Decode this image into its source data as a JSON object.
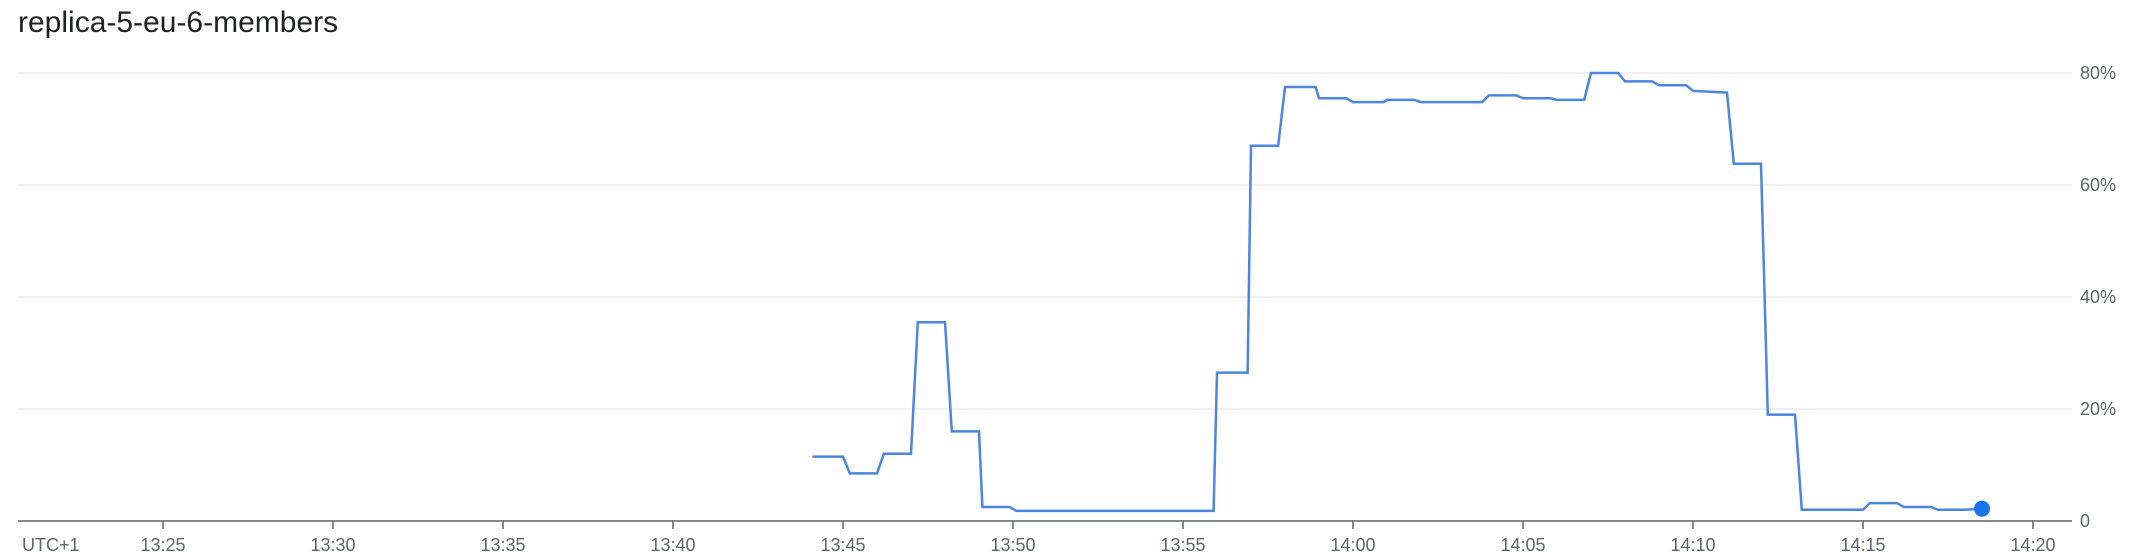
{
  "chart_data": {
    "type": "line",
    "title": "replica-5-eu-6-members",
    "timezone_label": "UTC+1",
    "x_tick_labels": [
      "13:25",
      "13:30",
      "13:35",
      "13:40",
      "13:45",
      "13:50",
      "13:55",
      "14:00",
      "14:05",
      "14:10",
      "14:15",
      "14:20"
    ],
    "y_tick_labels": [
      "0",
      "20%",
      "40%",
      "60%",
      "80%"
    ],
    "y_ticks": [
      0,
      20,
      40,
      60,
      80
    ],
    "ylim": [
      0,
      80
    ],
    "xlim_minutes": [
      20,
      81
    ],
    "grid": true,
    "line_color": "#4a86e0",
    "marker_color": "#1a73e8",
    "gridline_color": "#e8eaed",
    "axis_color": "#5f6368",
    "series": [
      {
        "x_minutes": [
          44.1,
          45.0,
          45.2,
          46.0,
          46.2,
          47.0,
          47.2,
          48.0,
          48.2,
          49.0,
          49.1,
          49.9,
          50.1,
          55.9,
          56.0,
          56.9,
          57.0,
          57.8,
          58.0,
          58.9,
          59.0,
          59.8,
          60.0,
          60.9,
          61.0,
          61.8,
          62.0,
          62.9,
          63.0,
          63.8,
          64.0,
          64.8,
          65.0,
          65.8,
          66.0,
          66.8,
          67.0,
          67.8,
          68.0,
          68.8,
          69.0,
          69.8,
          70.0,
          71.0,
          71.2,
          72.0,
          72.2,
          73.0,
          73.2,
          74.0,
          74.2,
          75.0,
          75.2,
          76.0,
          76.2,
          77.0,
          77.2,
          78.0,
          78.5
        ],
        "y_percent": [
          11.5,
          11.5,
          8.5,
          8.5,
          12,
          12,
          35.5,
          35.5,
          16,
          16,
          2.5,
          2.5,
          1.8,
          1.8,
          26.5,
          26.5,
          67,
          67,
          77.5,
          77.5,
          75.5,
          75.5,
          74.8,
          74.8,
          75.2,
          75.2,
          74.8,
          74.8,
          74.8,
          74.8,
          76,
          76,
          75.5,
          75.5,
          75.2,
          75.2,
          80,
          80,
          78.5,
          78.5,
          77.8,
          77.8,
          76.8,
          76.5,
          63.8,
          63.8,
          19,
          19,
          2,
          2,
          2,
          2,
          3.2,
          3.2,
          2.5,
          2.5,
          2,
          2,
          2.2
        ]
      }
    ]
  }
}
